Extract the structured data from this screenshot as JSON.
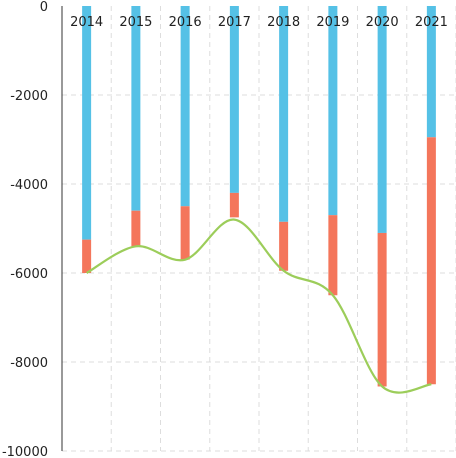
{
  "chart_data": {
    "type": "bar",
    "categories": [
      "2014",
      "2015",
      "2016",
      "2017",
      "2018",
      "2019",
      "2020",
      "2021"
    ],
    "series": [
      {
        "values": [
          -5250,
          -4600,
          -4500,
          -4200,
          -4850,
          -4700,
          -5100,
          -2950
        ],
        "color": "#55c1e6"
      },
      {
        "values": [
          -750,
          -800,
          -1200,
          -550,
          -1100,
          -1800,
          -3450,
          -5550
        ],
        "color": "#f4765b"
      }
    ],
    "line": {
      "values": [
        -6000,
        -5400,
        -5700,
        -4800,
        -5950,
        -6500,
        -8550,
        -8500
      ],
      "color": "#9ccd5a"
    },
    "ylim": [
      -10000,
      0
    ],
    "yticks": [
      0,
      -2000,
      -4000,
      -6000,
      -8000,
      -10000
    ],
    "xaxis_position": "top",
    "grid": true
  }
}
